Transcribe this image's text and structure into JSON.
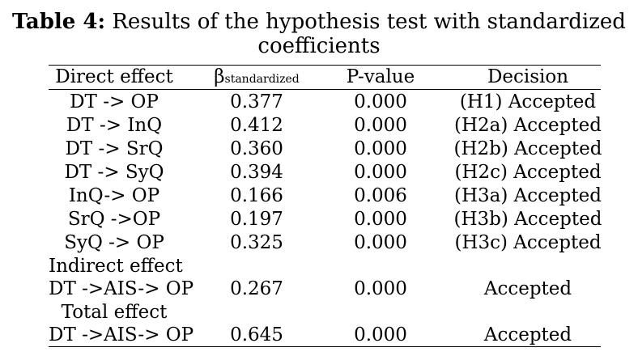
{
  "caption": {
    "lead": "Table 4:",
    "line1_rest": " Results of the hypothesis test with standardized",
    "line2": "coefficients"
  },
  "headers": {
    "effect": "Direct effect",
    "beta_symbol": "β",
    "beta_sub": "standardized",
    "pvalue": "P-value",
    "decision": "Decision"
  },
  "rows": [
    {
      "effect": "DT -> OP",
      "beta": "0.377",
      "p": "0.000",
      "decision": "(H1) Accepted"
    },
    {
      "effect": "DT -> InQ",
      "beta": "0.412",
      "p": "0.000",
      "decision": "(H2a) Accepted"
    },
    {
      "effect": "DT -> SrQ",
      "beta": "0.360",
      "p": "0.000",
      "decision": "(H2b) Accepted"
    },
    {
      "effect": "DT -> SyQ",
      "beta": "0.394",
      "p": "0.000",
      "decision": "(H2c) Accepted"
    },
    {
      "effect": "InQ-> OP",
      "beta": "0.166",
      "p": "0.006",
      "decision": "(H3a) Accepted"
    },
    {
      "effect": "SrQ ->OP",
      "beta": "0.197",
      "p": "0.000",
      "decision": "(H3b) Accepted"
    },
    {
      "effect": "SyQ -> OP",
      "beta": "0.325",
      "p": "0.000",
      "decision": "(H3c) Accepted"
    },
    {
      "effect": "Indirect effect",
      "beta": "",
      "p": "",
      "decision": ""
    },
    {
      "effect": "DT ->AIS-> OP",
      "beta": "0.267",
      "p": "0.000",
      "decision": "Accepted"
    },
    {
      "effect": "Total effect",
      "beta": "",
      "p": "",
      "decision": ""
    },
    {
      "effect": "DT ->AIS-> OP",
      "beta": "0.645",
      "p": "0.000",
      "decision": "Accepted"
    }
  ]
}
